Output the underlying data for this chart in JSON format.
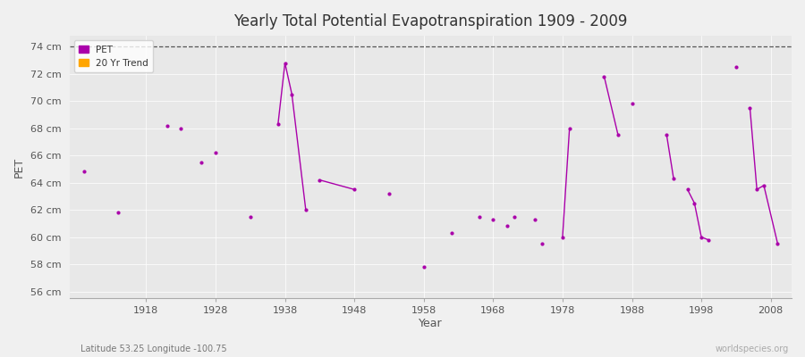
{
  "title": "Yearly Total Potential Evapotranspiration 1909 - 2009",
  "xlabel": "Year",
  "ylabel": "PET",
  "subtitle": "Latitude 53.25 Longitude -100.75",
  "watermark": "worldspecies.org",
  "ylim": [
    55.5,
    74.8
  ],
  "xlim": [
    1907,
    2011
  ],
  "yticks": [
    56,
    58,
    60,
    62,
    64,
    66,
    68,
    70,
    72,
    74
  ],
  "ytick_labels": [
    "56 cm",
    "58 cm",
    "60 cm",
    "62 cm",
    "64 cm",
    "66 cm",
    "68 cm",
    "70 cm",
    "72 cm",
    "74 cm"
  ],
  "xticks": [
    1918,
    1928,
    1938,
    1948,
    1958,
    1968,
    1978,
    1988,
    1998,
    2008
  ],
  "fig_bg_color": "#f0f0f0",
  "plot_bg_color": "#e8e8e8",
  "pet_color": "#aa00aa",
  "trend_color": "#ffa500",
  "dashed_line_y": 74,
  "standalone_points": [
    [
      1909,
      64.8
    ],
    [
      1914,
      61.8
    ],
    [
      1921,
      68.2
    ],
    [
      1923,
      68.0
    ],
    [
      1926,
      65.5
    ],
    [
      1928,
      66.2
    ],
    [
      1933,
      61.5
    ],
    [
      1953,
      63.2
    ],
    [
      1958,
      57.8
    ],
    [
      1962,
      60.3
    ],
    [
      1966,
      61.5
    ],
    [
      1968,
      61.3
    ],
    [
      1970,
      60.8
    ],
    [
      1971,
      61.5
    ],
    [
      1974,
      61.3
    ],
    [
      1975,
      59.5
    ],
    [
      1988,
      69.8
    ]
  ],
  "connected_segments": [
    [
      [
        1937,
        68.3
      ],
      [
        1938,
        72.8
      ],
      [
        1939,
        70.5
      ],
      [
        1941,
        62.0
      ]
    ],
    [
      [
        1943,
        64.2
      ],
      [
        1948,
        63.5
      ]
    ],
    [
      [
        1978,
        60.0
      ],
      [
        1979,
        68.0
      ]
    ],
    [
      [
        1984,
        71.8
      ],
      [
        1986,
        67.5
      ]
    ],
    [
      [
        1993,
        67.5
      ],
      [
        1994,
        64.3
      ]
    ],
    [
      [
        1996,
        63.5
      ],
      [
        1997,
        62.5
      ],
      [
        1998,
        60.0
      ],
      [
        1999,
        59.8
      ]
    ],
    [
      [
        2003,
        72.5
      ]
    ],
    [
      [
        2005,
        69.5
      ],
      [
        2006,
        63.5
      ],
      [
        2007,
        63.8
      ],
      [
        2009,
        59.5
      ]
    ]
  ]
}
